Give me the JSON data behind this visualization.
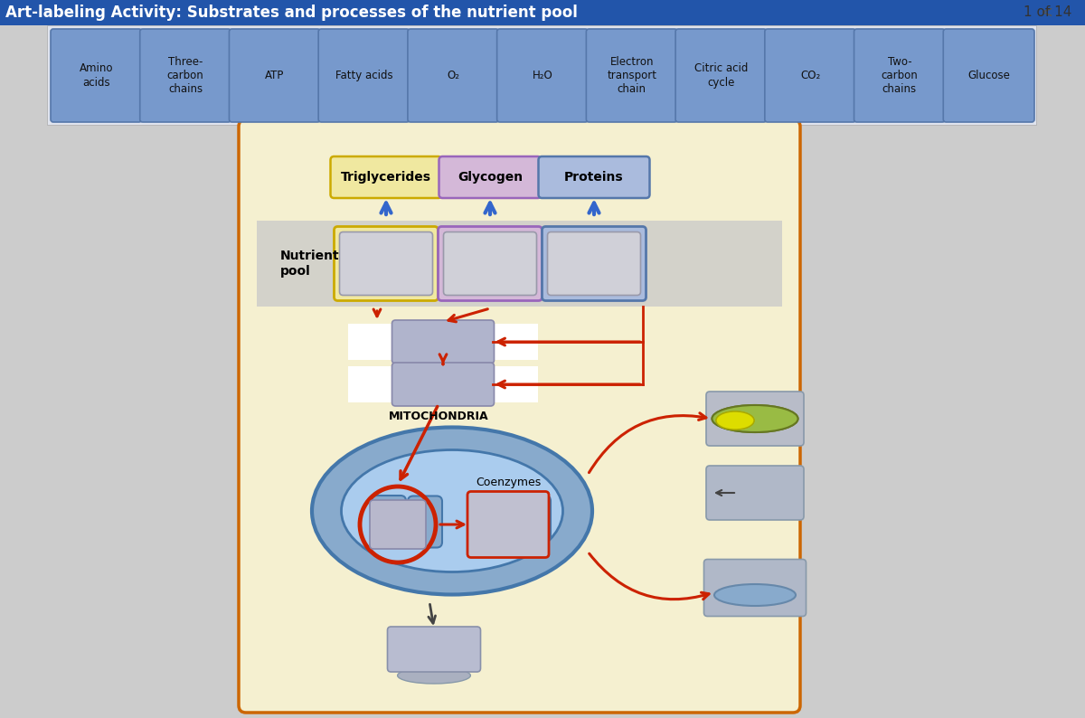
{
  "title": "Art-labeling Activity: Substrates and processes of the nutrient pool",
  "page_indicator": "1 of 14",
  "title_bg": "#2255aa",
  "title_fg": "#ffffff",
  "toolbar_labels": [
    "Amino\nacids",
    "Three-\ncarbon\nchains",
    "ATP",
    "Fatty acids",
    "O₂",
    "H₂O",
    "Electron\ntransport\nchain",
    "Citric acid\ncycle",
    "CO₂",
    "Two-\ncarbon\nchains",
    "Glucose"
  ],
  "toolbar_bg": "#7799cc",
  "toolbar_fg": "#222222",
  "page_bg": "#cccccc",
  "main_bg": "#f5f0d0",
  "main_border": "#cc6600",
  "nutrient_pool_label": "Nutrient\npool",
  "triglycerides_label": "Triglycerides",
  "trig_fill": "#f0e8a0",
  "trig_border": "#ccaa00",
  "glycogen_label": "Glycogen",
  "glyc_fill": "#d4b8d8",
  "glyc_border": "#9966bb",
  "proteins_label": "Proteins",
  "prot_fill": "#aabbdd",
  "prot_border": "#5577aa",
  "mitochondria_label": "MITOCHONDRIA",
  "mito_outer_fill": "#88aacc",
  "mito_inner_fill": "#aaccee",
  "coenzymes_label": "Coenzymes",
  "arrow_blue": "#3366cc",
  "arrow_red": "#cc2200",
  "arrow_dark": "#444444",
  "np_band_fill": "#c8c8c8",
  "inter_box_fill": "#b0b4cc",
  "inter_box_edge": "#8888aa",
  "inter_white_fill": "#ffffff",
  "circle_box_fill": "#b8b8cc",
  "coe_box_fill": "#c0c0d0",
  "right_box_fill": "#b0b8c8",
  "right_box_edge": "#8899aa",
  "ellipse_green": "#99bb44",
  "ellipse_yellow": "#dddd00",
  "ellipse_blue_fill": "#88aacc",
  "ellipse_blue_edge": "#6688aa",
  "bot_box_fill": "#b8bcd0",
  "bot_ell_fill": "#aab0c0"
}
